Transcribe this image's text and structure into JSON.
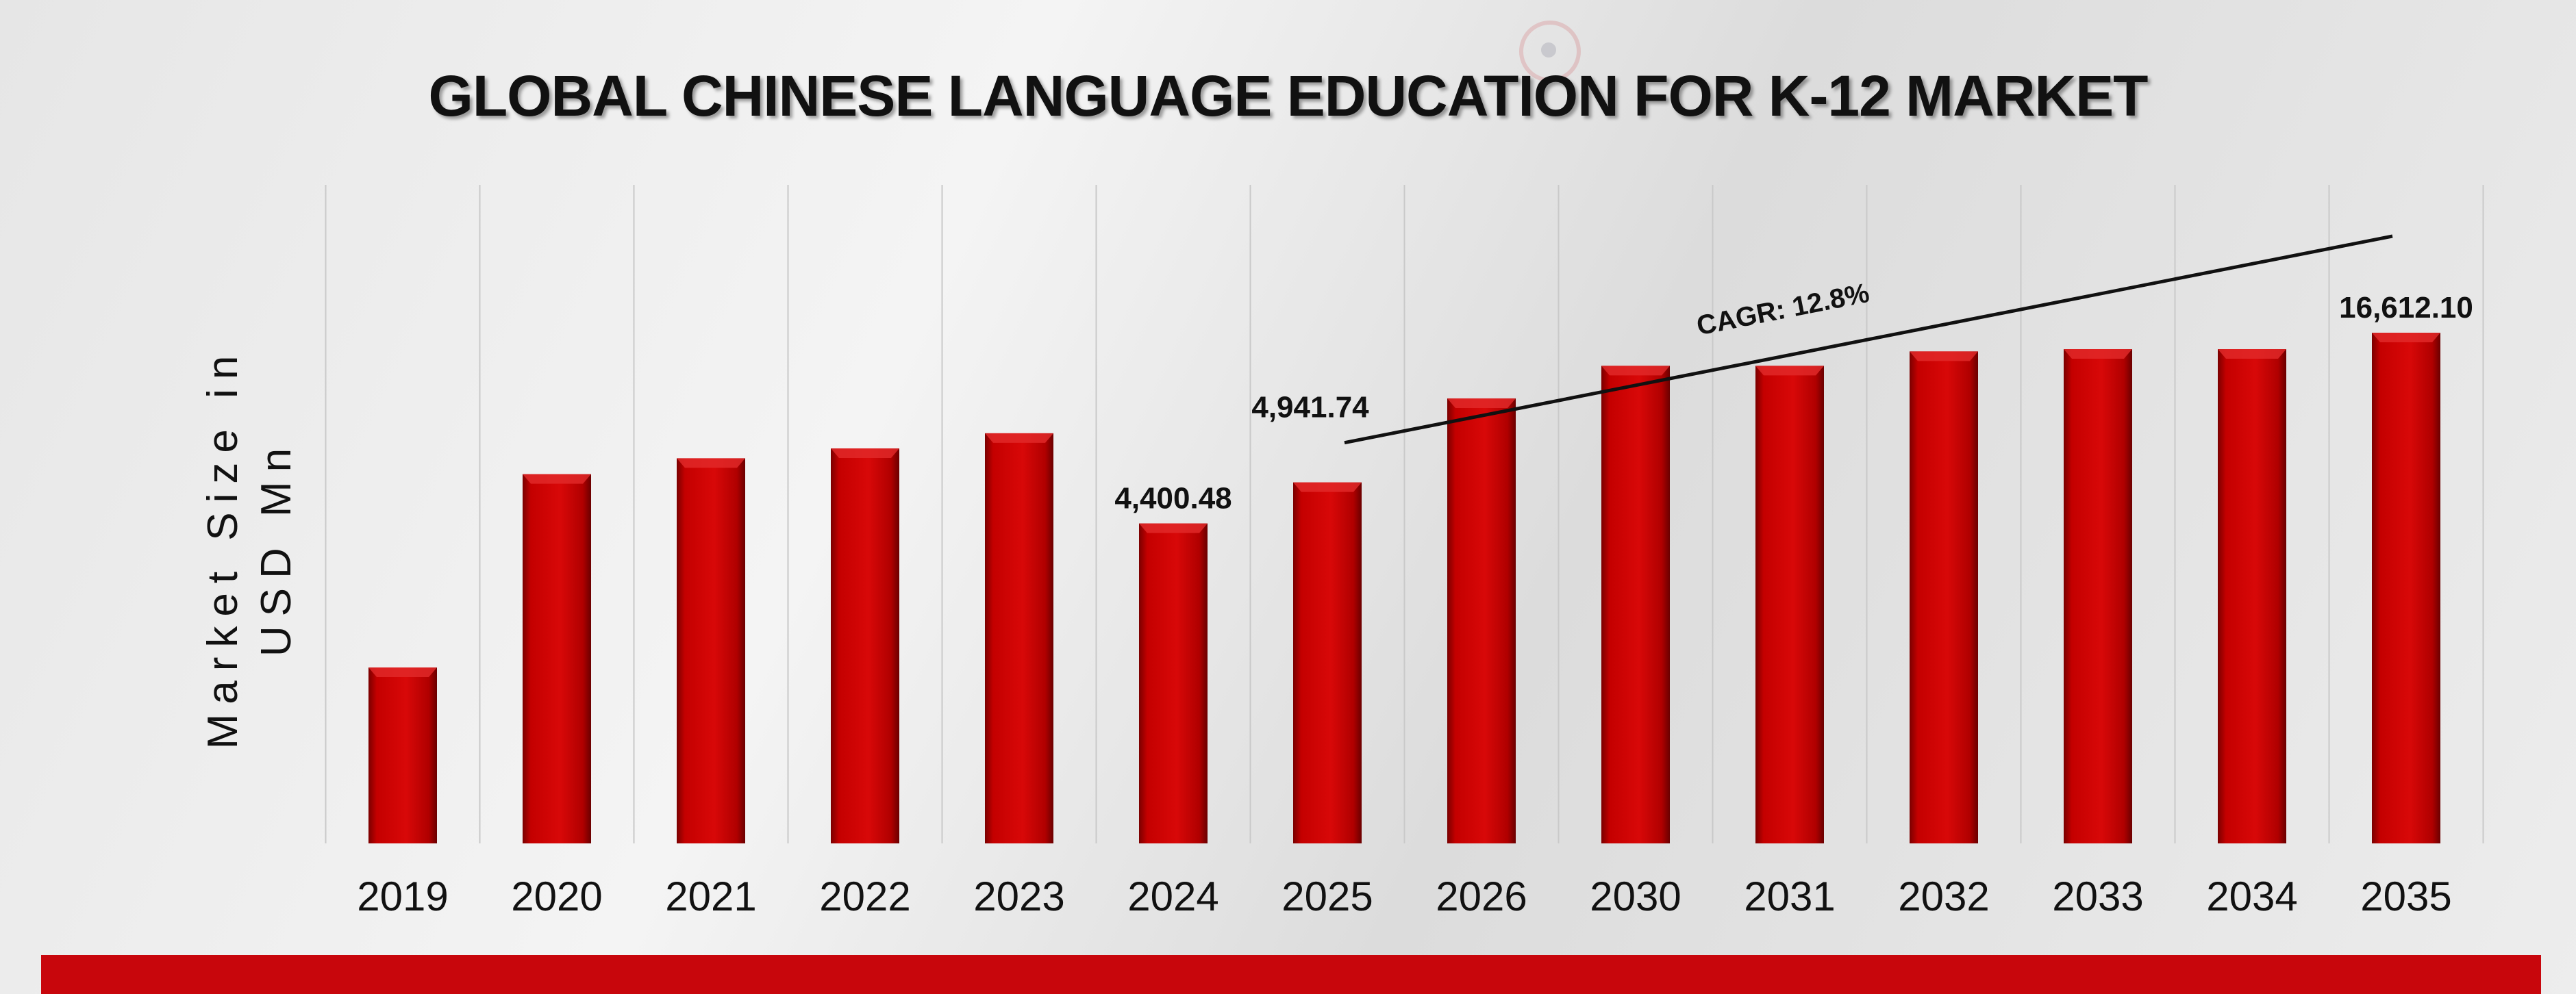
{
  "chart_data": {
    "type": "bar",
    "title": "GLOBAL CHINESE LANGUAGE EDUCATION FOR K-12 MARKET",
    "xlabel": "",
    "ylabel": "Market Size in USD Mn",
    "categories": [
      "2019",
      "2020",
      "2021",
      "2022",
      "2023",
      "2024",
      "2025",
      "2026",
      "2030",
      "2031",
      "2032",
      "2033",
      "2034",
      "2035"
    ],
    "values": [
      2500,
      5050,
      5260,
      5390,
      5590,
      4400.48,
      4941.74,
      6050,
      6480,
      6480,
      6670,
      6700,
      6700,
      16612.1
    ],
    "data_labels": [
      {
        "category": "2024",
        "text": "4,400.48"
      },
      {
        "category": "2025",
        "text": "4,941.74"
      },
      {
        "category": "2035",
        "text": "16,612.10"
      }
    ],
    "annotation": {
      "text": "CAGR: 12.8%",
      "from": "2025",
      "to": "2035"
    },
    "legend": "none",
    "grid": "vertical separators",
    "bar_color": "#c00000"
  }
}
